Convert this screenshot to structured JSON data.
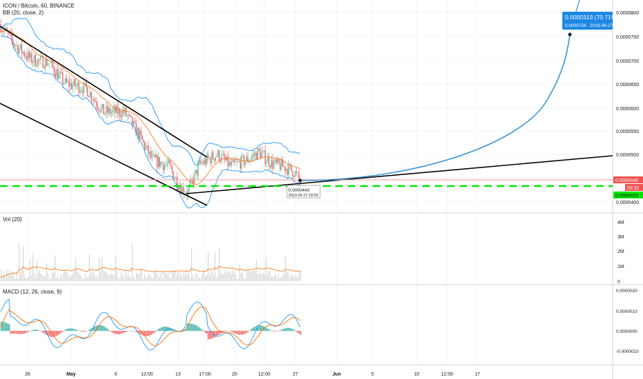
{
  "header": {
    "symbol_line": "ICON / Bitcoin, 60, BINANCE",
    "bb_label": "BB (20, close, 2)",
    "vol_label": "Vol (20)",
    "macd_label": "MACD (12, 26, close, 9)"
  },
  "colors": {
    "candle_up": "#53b987",
    "candle_down": "#eb4d5c",
    "bb_band": "#2196f3",
    "bb_basis": "#ff6d00",
    "trendline": "#000000",
    "support_line": "#00e600",
    "projection": "#2f8fd6",
    "price_red": "#ef5350",
    "price_green": "#00e600",
    "macd_line": "#2196f3",
    "signal_line": "#ff6d00"
  },
  "price_axis": {
    "ticks": [
      "0.0000800",
      "0.0000750",
      "0.0000700",
      "0.0000650",
      "0.0000600",
      "0.0000550",
      "0.0000500",
      "0.0000450",
      "0.0000400"
    ],
    "current_price_tag": "0.0000445",
    "countdown_tag": "05:32",
    "green_tag": "0.0000433"
  },
  "volume_axis": {
    "ticks": [
      "4M",
      "3M",
      "2M",
      "1M",
      "0"
    ]
  },
  "macd_axis": {
    "ticks": [
      "0.0000020",
      "0.0000010",
      "0.0000000",
      "-0.0000010"
    ]
  },
  "time_axis": {
    "ticks": [
      "26",
      "May",
      "6",
      "12:00",
      "13",
      "17:00",
      "20",
      "12:00",
      "27",
      "Jun",
      "5",
      "10",
      "12:00",
      "17"
    ]
  },
  "annotations": {
    "target_main": "0.0000313 (70.71%)",
    "target_price": "0.0000756",
    "target_date": "2019-06-27",
    "cursor_price": "0.0000443",
    "cursor_date": "2019-05-27 02:00"
  },
  "chart_data": {
    "type": "candlestick",
    "title": "ICON / Bitcoin, 60, BINANCE",
    "ylim": [
      3.85e-05,
      8.18e-05
    ],
    "key_points": [
      {
        "date": "2019-04-24",
        "price": 7.7e-05
      },
      {
        "date": "2019-05-14",
        "price": 4.12e-05
      },
      {
        "date": "2019-05-27",
        "price": 4.43e-05
      },
      {
        "date": "2019-06-27",
        "price": 7.56e-05
      }
    ],
    "support_level": 4.33e-05,
    "last_price": 4.45e-05,
    "projection_target": 7.56e-05,
    "projection_change_pct": 70.71
  }
}
